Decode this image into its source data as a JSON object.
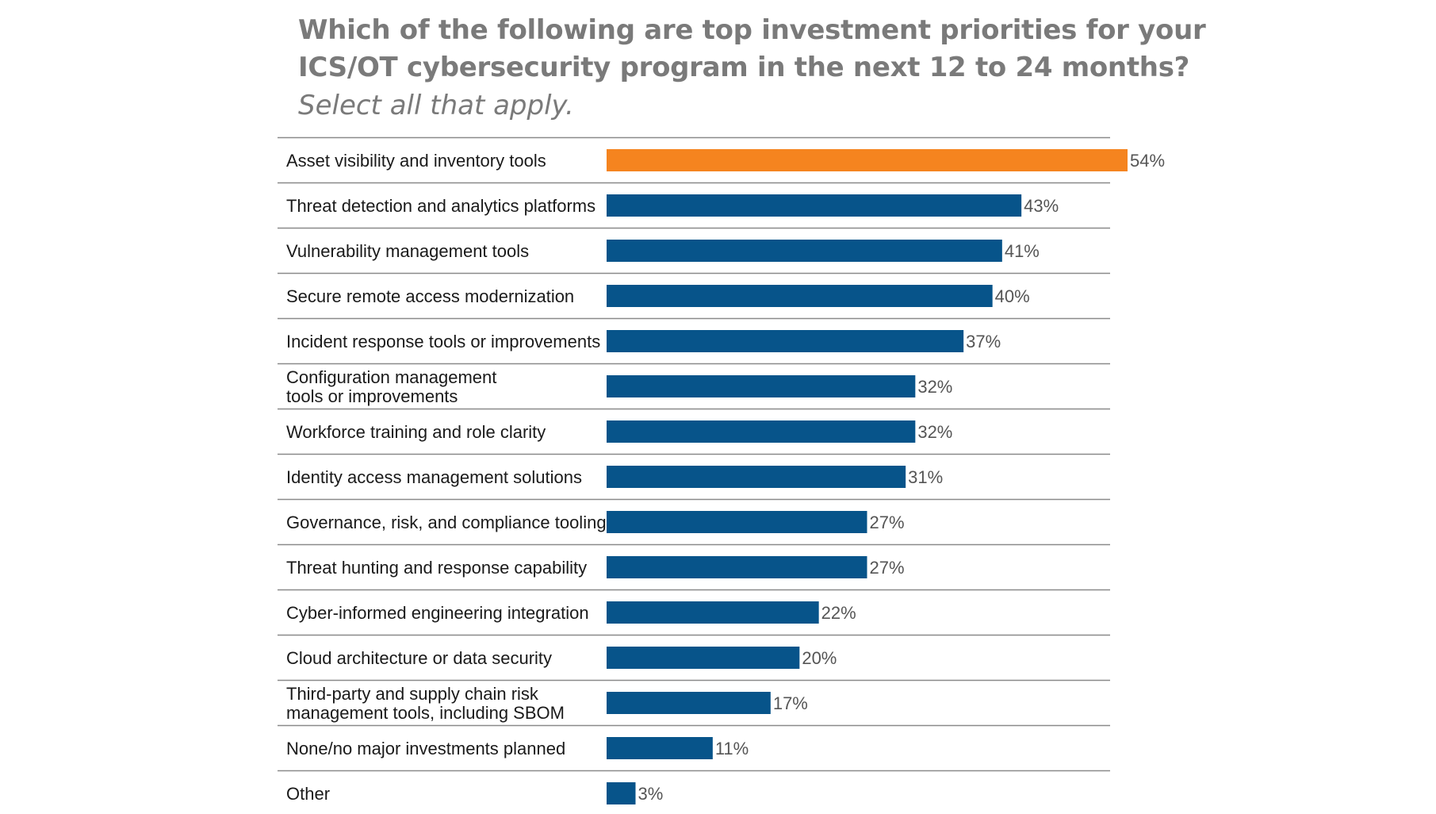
{
  "header": {
    "title_line1": "Which of the following are top investment priorities for your",
    "title_line2": "ICS/OT cybersecurity program in the next 12 to 24 months?",
    "subtitle": "Select all that apply."
  },
  "colors": {
    "highlight": "#f5841f",
    "bar": "#07548a",
    "label_text": "#1a1a1a",
    "value_text": "#555555",
    "divider": "#8a8a8a"
  },
  "chart_data": {
    "type": "bar",
    "orientation": "horizontal",
    "value_suffix": "%",
    "xlim": [
      0,
      54
    ],
    "grid": false,
    "legend": "none",
    "categories": [
      [
        "Asset visibility and inventory tools"
      ],
      [
        "Threat detection and analytics platforms"
      ],
      [
        "Vulnerability management tools"
      ],
      [
        "Secure remote access modernization"
      ],
      [
        "Incident response tools or improvements"
      ],
      [
        "Configuration management",
        "tools or improvements"
      ],
      [
        "Workforce training and role clarity"
      ],
      [
        "Identity access management solutions"
      ],
      [
        "Governance, risk, and compliance tooling"
      ],
      [
        "Threat hunting and response capability"
      ],
      [
        "Cyber-informed engineering integration"
      ],
      [
        "Cloud architecture or data security"
      ],
      [
        "Third-party and supply chain risk",
        "management tools, including SBOM"
      ],
      [
        "None/no major investments planned"
      ],
      [
        "Other"
      ]
    ],
    "values": [
      54,
      43,
      41,
      40,
      37,
      32,
      32,
      31,
      27,
      27,
      22,
      20,
      17,
      11,
      3
    ],
    "data_labels": [
      "54%",
      "43%",
      "41%",
      "40%",
      "37%",
      "32%",
      "32%",
      "31%",
      "27%",
      "27%",
      "22%",
      "20%",
      "17%",
      "11%",
      "3%"
    ],
    "highlight_index": 0
  }
}
